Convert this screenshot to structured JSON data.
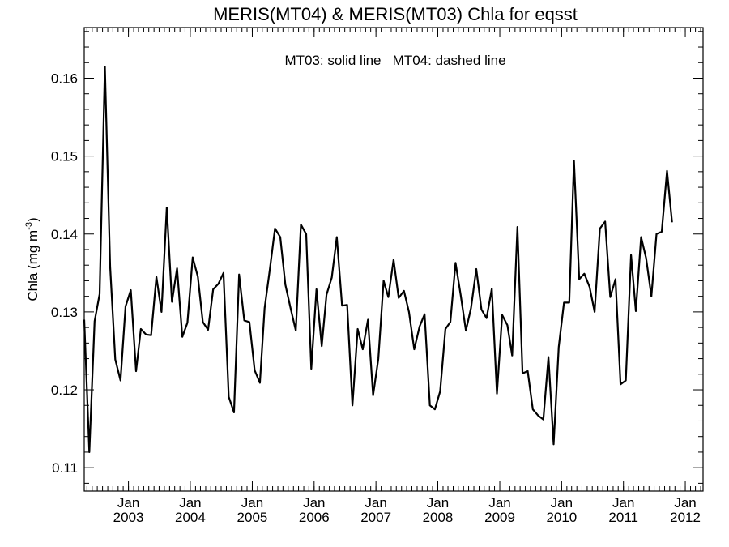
{
  "chart_data": {
    "type": "line",
    "title": "MERIS(MT04) & MERIS(MT03)  Chla for eqsst",
    "annotation": "MT03: solid line   MT04: dashed line",
    "ylabel_main": "Chla (mg m",
    "ylabel_sup": "-3",
    "ylabel_end": ")",
    "xlabel": "",
    "xlim": [
      "2002-04-15",
      "2012-04-15"
    ],
    "ylim": [
      0.107,
      0.1665
    ],
    "yticks": [
      {
        "value": 0.11,
        "label": "0.11"
      },
      {
        "value": 0.12,
        "label": "0.12"
      },
      {
        "value": 0.13,
        "label": "0.13"
      },
      {
        "value": 0.14,
        "label": "0.14"
      },
      {
        "value": 0.15,
        "label": "0.15"
      },
      {
        "value": 0.16,
        "label": "0.16"
      }
    ],
    "xticks": [
      {
        "date": "2003-01-01",
        "month": "Jan",
        "year": "2003"
      },
      {
        "date": "2004-01-01",
        "month": "Jan",
        "year": "2004"
      },
      {
        "date": "2005-01-01",
        "month": "Jan",
        "year": "2005"
      },
      {
        "date": "2006-01-01",
        "month": "Jan",
        "year": "2006"
      },
      {
        "date": "2007-01-01",
        "month": "Jan",
        "year": "2007"
      },
      {
        "date": "2008-01-01",
        "month": "Jan",
        "year": "2008"
      },
      {
        "date": "2009-01-01",
        "month": "Jan",
        "year": "2009"
      },
      {
        "date": "2010-01-01",
        "month": "Jan",
        "year": "2010"
      },
      {
        "date": "2011-01-01",
        "month": "Jan",
        "year": "2011"
      },
      {
        "date": "2012-01-01",
        "month": "Jan",
        "year": "2012"
      }
    ],
    "grid": false,
    "series": [
      {
        "style": "solid",
        "color": "#000000",
        "start": "2002-04-15",
        "step": "month",
        "values": [
          0.129,
          0.112,
          0.1288,
          0.1323,
          0.1615,
          0.1358,
          0.1239,
          0.1212,
          0.1307,
          0.1328,
          0.1224,
          0.1278,
          0.1271,
          0.127,
          0.1345,
          0.13,
          0.1434,
          0.1313,
          0.1356,
          0.1268,
          0.1286,
          0.137,
          0.1345,
          0.1287,
          0.1277,
          0.1329,
          0.1336,
          0.135,
          0.1191,
          0.1171,
          0.1348,
          0.1289,
          0.1287,
          0.1225,
          0.1209,
          0.1305,
          0.1355,
          0.1407,
          0.1396,
          0.1335,
          0.1305,
          0.1276,
          0.1412,
          0.14,
          0.1227,
          0.1329,
          0.1256,
          0.1322,
          0.1344,
          0.1396,
          0.1308,
          0.1309,
          0.118,
          0.1278,
          0.1252,
          0.129,
          0.1193,
          0.124,
          0.134,
          0.1319,
          0.1367,
          0.1318,
          0.1327,
          0.13,
          0.1252,
          0.1281,
          0.1297,
          0.118,
          0.1175,
          0.1198,
          0.1278,
          0.1287,
          0.1363,
          0.1322,
          0.1276,
          0.1305,
          0.1355,
          0.1303,
          0.1292,
          0.133,
          0.1195,
          0.1296,
          0.1283,
          0.1244,
          0.1409,
          0.1221,
          0.1224,
          0.1175,
          0.1167,
          0.1162,
          0.1242,
          0.113,
          0.1255,
          0.1312,
          0.1312,
          0.1494,
          0.1342,
          0.1349,
          0.1332,
          0.13,
          0.1407,
          0.1416,
          0.1319,
          0.1342,
          0.1207,
          0.1212,
          0.1373,
          0.1301,
          0.1396,
          0.1369,
          0.132,
          0.14,
          0.1403,
          0.1481,
          0.1415
        ]
      }
    ]
  }
}
